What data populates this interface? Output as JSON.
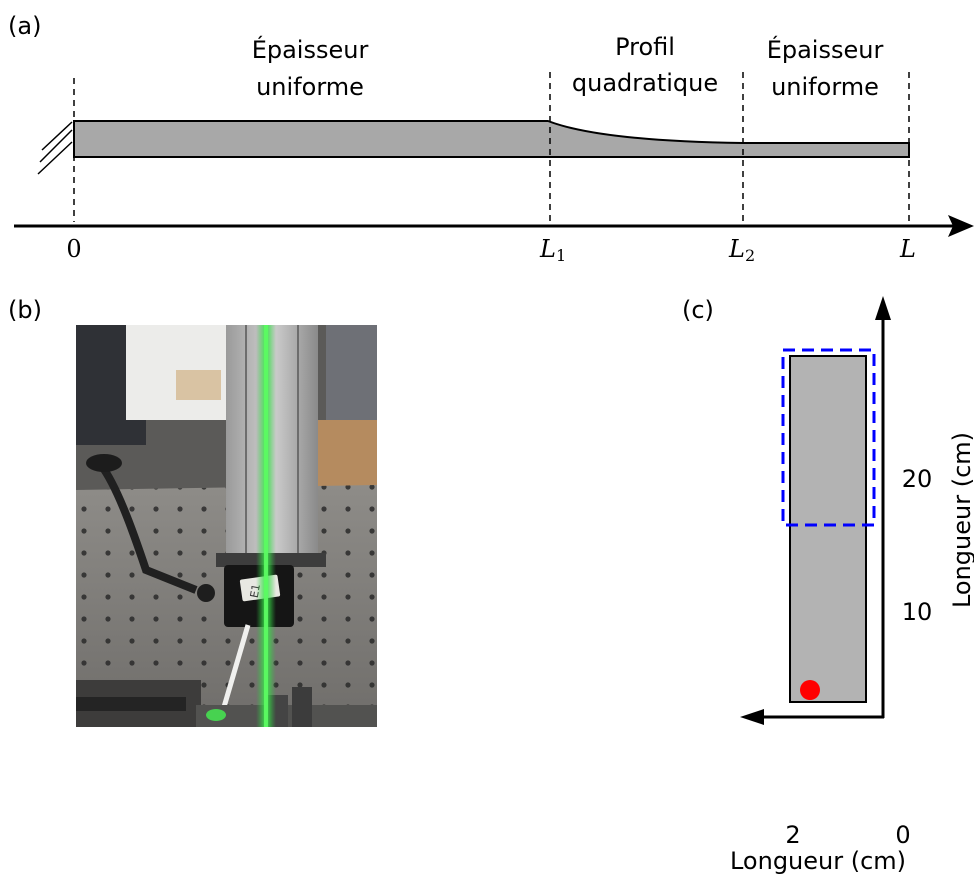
{
  "panel_a": {
    "label": "(a)",
    "region1": {
      "line1": "Épaisseur",
      "line2": "uniforme"
    },
    "region2": {
      "line1": "Profil",
      "line2": "quadratique"
    },
    "region3": {
      "line1": "Épaisseur",
      "line2": "uniforme"
    },
    "axis_ticks": {
      "zero": "0",
      "l1": "L",
      "l1_sub": "1",
      "l2": "L",
      "l2_sub": "2",
      "l": "L"
    }
  },
  "panel_b": {
    "label": "(b)",
    "photo_note": "E1"
  },
  "panel_c": {
    "label": "(c)",
    "y_ticks": [
      "20",
      "10"
    ],
    "y_label": "Longueur (cm)",
    "x_ticks": [
      "2",
      "0"
    ],
    "x_label": "Longueur (cm)",
    "colors": {
      "beam": "#b3b3b3",
      "zone": "#0000ff",
      "point": "#ff0000"
    }
  }
}
